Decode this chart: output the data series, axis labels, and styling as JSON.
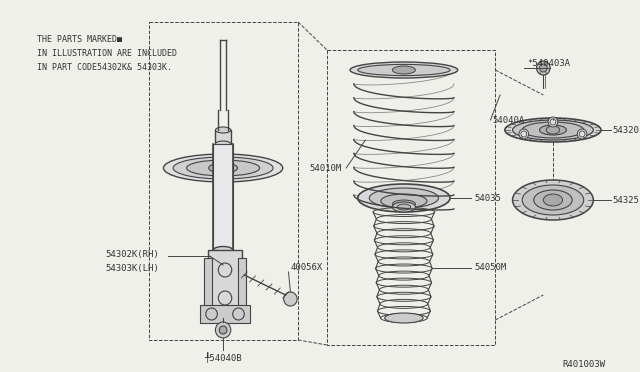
{
  "bg_color": "#f0f0eb",
  "line_color": "#444444",
  "text_color": "#333333",
  "title_lines": [
    "THE PARTS MARKED■",
    "IN ILLUSTRATION ARE INCLUDED",
    "IN PART CODE54302K& 54303K."
  ],
  "ref_code": "R401003W",
  "figsize": [
    6.4,
    3.72
  ],
  "dpi": 100
}
